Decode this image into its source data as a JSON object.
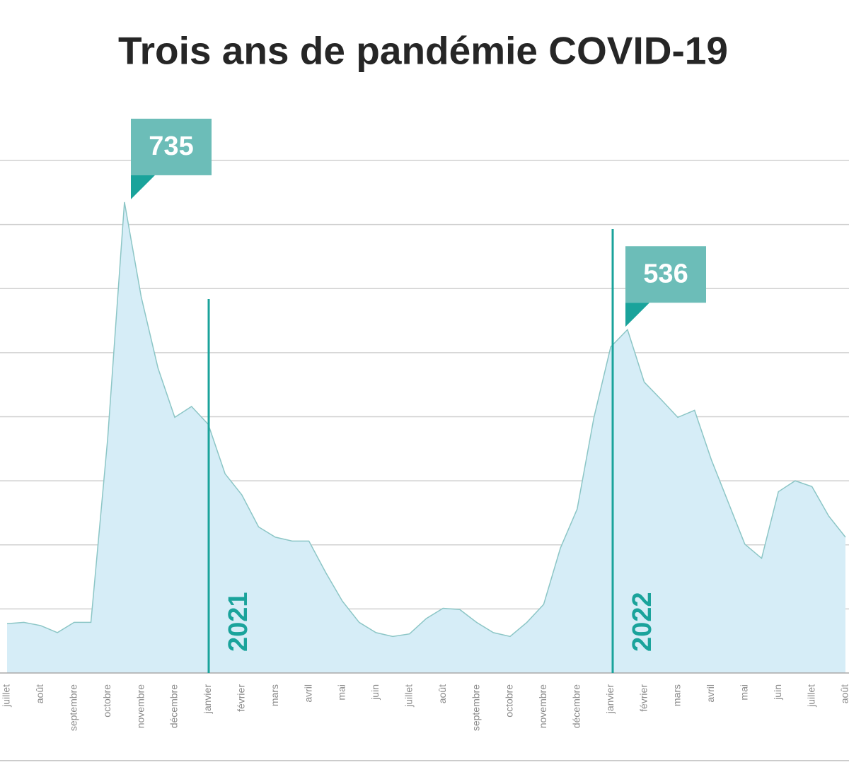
{
  "chart_data": {
    "type": "area",
    "title": "Trois ans de pandémie COVID-19",
    "categories": [
      "juillet",
      null,
      "août",
      null,
      "septembre",
      null,
      "octobre",
      null,
      "novembre",
      null,
      "décembre",
      null,
      "janvier",
      null,
      "février",
      null,
      "mars",
      null,
      "avril",
      null,
      "mai",
      null,
      "juin",
      null,
      "juillet",
      null,
      "août",
      null,
      "septembre",
      null,
      "octobre",
      null,
      "novembre",
      null,
      "décembre",
      null,
      "janvier",
      null,
      "février",
      null,
      "mars",
      null,
      "avril",
      null,
      "mai",
      null,
      "juin",
      null,
      "juillet",
      null,
      "août"
    ],
    "values": [
      77,
      79,
      74,
      63,
      79,
      79,
      366,
      735,
      587,
      476,
      399,
      416,
      388,
      311,
      278,
      228,
      212,
      206,
      206,
      157,
      112,
      79,
      63,
      57,
      61,
      85,
      101,
      99,
      79,
      63,
      57,
      79,
      107,
      195,
      256,
      399,
      509,
      536,
      454,
      427,
      399,
      410,
      333,
      267,
      201,
      179,
      283,
      300,
      291,
      245,
      212
    ],
    "color": "#8cc6c6",
    "fill_color": "#d6edf7",
    "ylim": [
      0,
      800
    ],
    "yticks": [
      100,
      200,
      300,
      400,
      500,
      600,
      700,
      800
    ],
    "grid": true,
    "annotations": [
      {
        "text": "735",
        "value": 735
      },
      {
        "text": "536",
        "value": 536
      }
    ],
    "markers": [
      {
        "label": "2021"
      },
      {
        "label": "2022"
      }
    ],
    "annotation_color": "#6cbdb8",
    "marker_color": "#1aa39b"
  }
}
